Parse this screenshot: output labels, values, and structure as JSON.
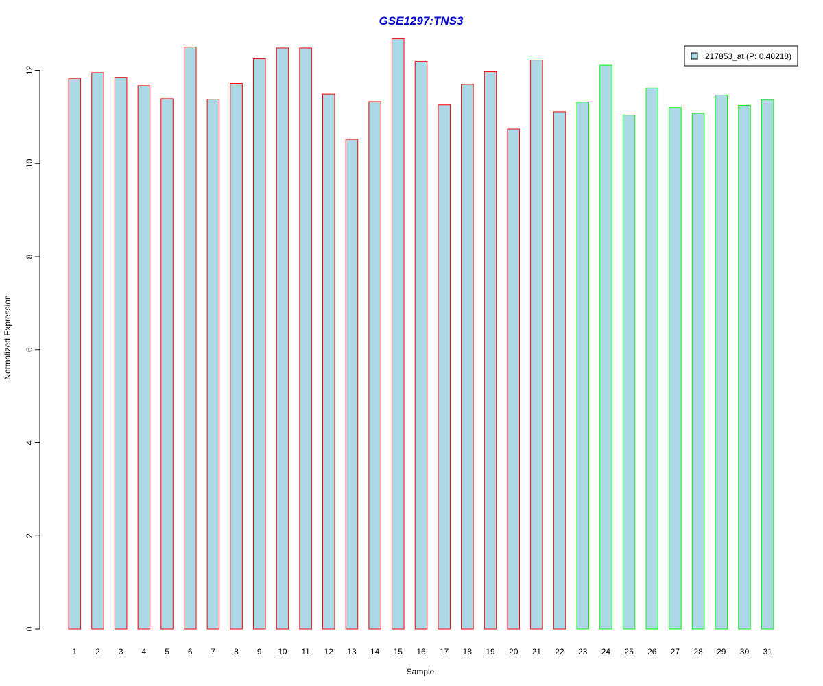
{
  "chart_data": {
    "type": "bar",
    "title": "GSE1297:TNS3",
    "xlabel": "Sample",
    "ylabel": "Normalized Expression",
    "ylim": [
      0,
      12.7
    ],
    "yticks": [
      "0",
      "2",
      "4",
      "6",
      "8",
      "10",
      "12"
    ],
    "grid": false,
    "legend_position": "top-right",
    "categories": [
      "1",
      "2",
      "3",
      "4",
      "5",
      "6",
      "7",
      "8",
      "9",
      "10",
      "11",
      "12",
      "13",
      "14",
      "15",
      "16",
      "17",
      "18",
      "19",
      "20",
      "21",
      "22",
      "23",
      "24",
      "25",
      "26",
      "27",
      "28",
      "29",
      "30",
      "31"
    ],
    "series": [
      {
        "name": "217853_at (P: 0.40218)",
        "values": [
          11.83,
          11.95,
          11.85,
          11.67,
          11.39,
          12.5,
          11.38,
          11.72,
          12.25,
          12.48,
          12.48,
          11.49,
          10.52,
          11.33,
          12.68,
          12.19,
          11.26,
          11.7,
          11.97,
          10.74,
          12.22,
          11.11,
          11.32,
          12.11,
          11.04,
          11.62,
          11.2,
          11.08,
          11.47,
          11.25,
          11.37
        ]
      }
    ],
    "bar_groups": [
      "red",
      "red",
      "red",
      "red",
      "red",
      "red",
      "red",
      "red",
      "red",
      "red",
      "red",
      "red",
      "red",
      "red",
      "red",
      "red",
      "red",
      "red",
      "red",
      "red",
      "red",
      "red",
      "green",
      "green",
      "green",
      "green",
      "green",
      "green",
      "green",
      "green",
      "green"
    ],
    "colors": {
      "bar_fill": "#add8e6",
      "group_red": "#ff0000",
      "group_green": "#00ff00",
      "title": "#0000cd",
      "axis": "#000000",
      "legend_border": "#000000"
    }
  }
}
